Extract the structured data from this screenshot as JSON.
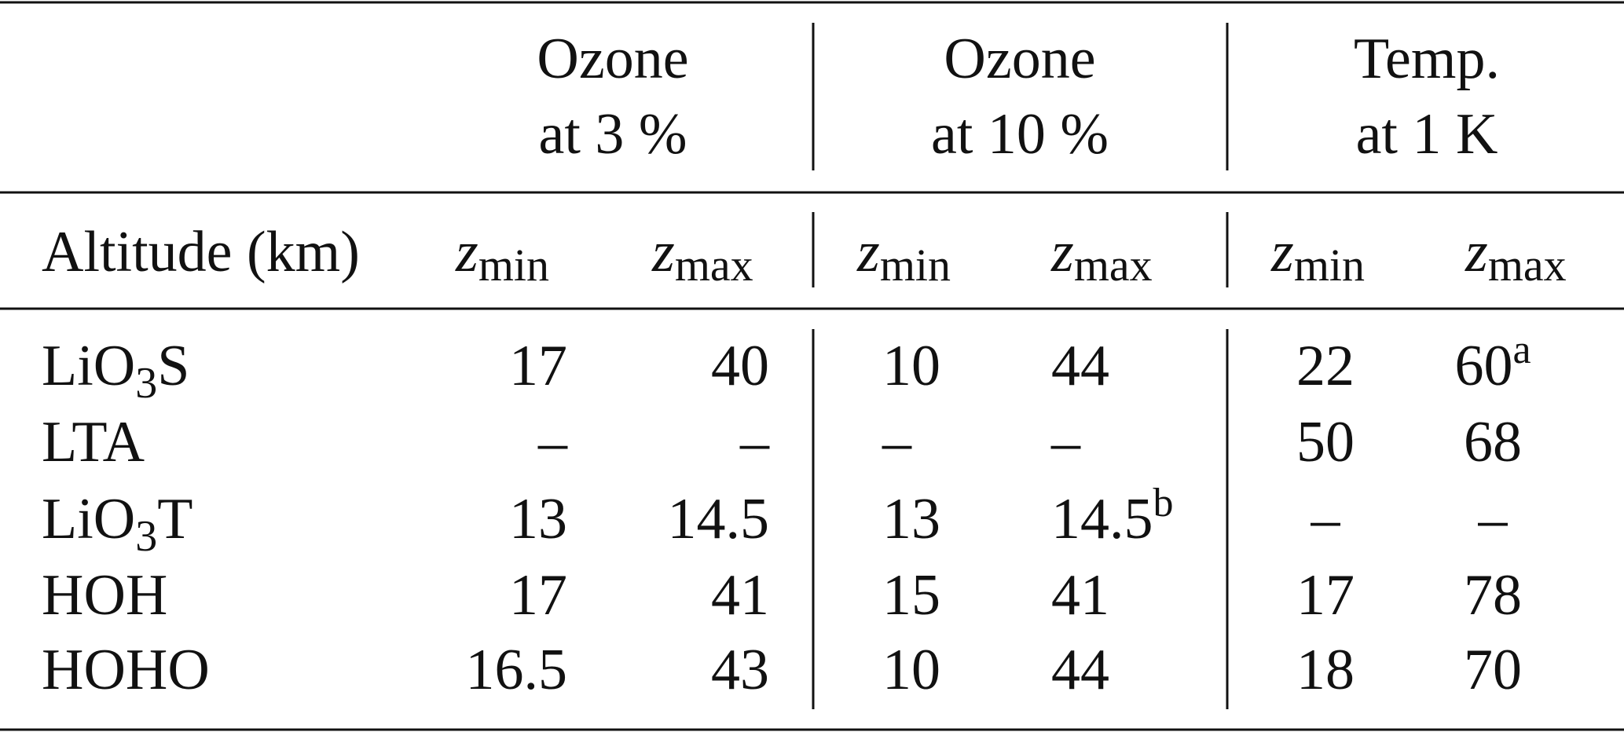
{
  "header": {
    "groups": [
      {
        "line1": "Ozone",
        "line2": "at 3 %"
      },
      {
        "line1": "Ozone",
        "line2": "at 10 %"
      },
      {
        "line1": "Temp.",
        "line2": "at 1 K"
      }
    ],
    "row_label": "Altitude (km)",
    "columns": [
      {
        "symbol": "z",
        "sub": "min"
      },
      {
        "symbol": "z",
        "sub": "max"
      },
      {
        "symbol": "z",
        "sub": "min"
      },
      {
        "symbol": "z",
        "sub": "max"
      },
      {
        "symbol": "z",
        "sub": "min"
      },
      {
        "symbol": "z",
        "sub": "max"
      }
    ]
  },
  "table": {
    "rows": [
      {
        "label": [
          "LiO",
          "3",
          "S"
        ],
        "cells": [
          17,
          40,
          10,
          44,
          22,
          {
            "value": 60,
            "sup": "a"
          }
        ]
      },
      {
        "label": [
          "LTA"
        ],
        "cells": [
          "–",
          "–",
          "–",
          "–",
          50,
          68
        ]
      },
      {
        "label": [
          "LiO",
          "3",
          "T"
        ],
        "cells": [
          13,
          14.5,
          13,
          {
            "value": 14.5,
            "sup": "b"
          },
          "–",
          "–"
        ]
      },
      {
        "label": [
          "HOH"
        ],
        "cells": [
          17,
          41,
          15,
          41,
          17,
          78
        ]
      },
      {
        "label": [
          "HOHO"
        ],
        "cells": [
          16.5,
          43,
          10,
          44,
          18,
          70
        ]
      }
    ]
  }
}
